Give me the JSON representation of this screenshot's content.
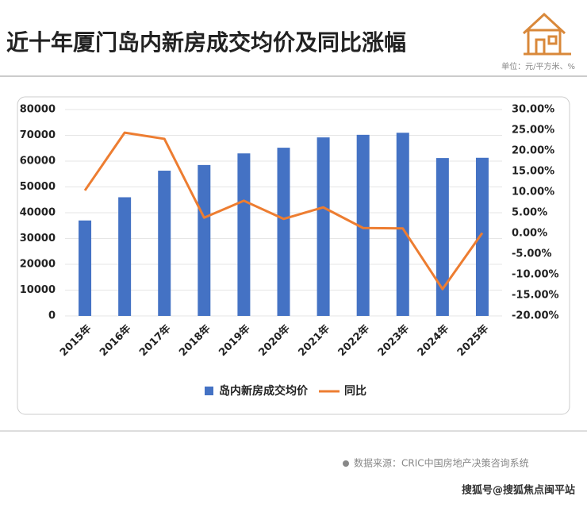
{
  "chart_data": {
    "type": "bar_line",
    "title": "近十年厦门岛内新房成交均价及同比涨幅",
    "unit": "单位：元/平方米、%",
    "source": "数据来源：CRIC中国房地产决策咨询系统",
    "watermark": "搜狐号@搜狐焦点闽平站",
    "categories": [
      "2015年",
      "2016年",
      "2017年",
      "2018年",
      "2019年",
      "2020年",
      "2021年",
      "2022年",
      "2023年",
      "2024年",
      "2025年"
    ],
    "series": [
      {
        "name": "岛内新房成交均价",
        "color": "#4472c4",
        "type": "bar",
        "values": [
          37000,
          46000,
          56300,
          58500,
          63000,
          65200,
          69200,
          70200,
          71000,
          61200,
          61300
        ]
      },
      {
        "name": "同比",
        "color": "#ed7d31",
        "type": "line",
        "axis": "y2",
        "values": [
          10.4,
          24.4,
          22.9,
          3.8,
          7.9,
          3.5,
          6.3,
          1.3,
          1.2,
          -13.5,
          0.1
        ]
      }
    ],
    "ylim": [
      0,
      80000
    ],
    "yticks": [
      0,
      10000,
      20000,
      30000,
      40000,
      50000,
      60000,
      70000,
      80000
    ],
    "y2lim": [
      -20,
      30
    ],
    "y2ticks": [
      {
        "value": -20,
        "label": "-20.00%"
      },
      {
        "value": -15,
        "label": "-15.00%"
      },
      {
        "value": -10,
        "label": "-10.00%"
      },
      {
        "value": -5,
        "label": "-5.00%"
      },
      {
        "value": 0,
        "label": "0.00%"
      },
      {
        "value": 5,
        "label": "5.00%"
      },
      {
        "value": 10,
        "label": "10.00%"
      },
      {
        "value": 15,
        "label": "15.00%"
      },
      {
        "value": 20,
        "label": "20.00%"
      },
      {
        "value": 25,
        "label": "25.00%"
      },
      {
        "value": 30,
        "label": "30.00%"
      }
    ],
    "grid": true,
    "legend": "bottom"
  }
}
